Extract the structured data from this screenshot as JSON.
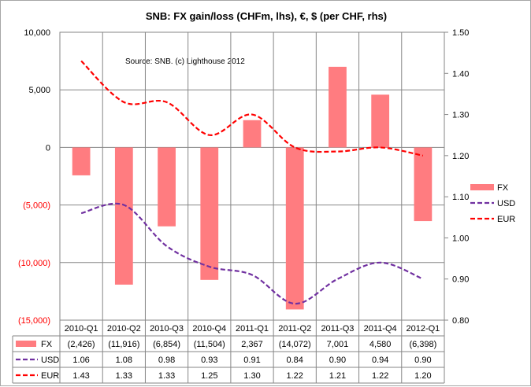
{
  "chart_data": {
    "type": "bar",
    "title": "SNB: FX gain/loss (CHFm, lhs), €, $ (per CHF, rhs)",
    "annotation": "Source: SNB. (c) Lighthouse 2012",
    "categories": [
      "2010-Q1",
      "2010-Q2",
      "2010-Q3",
      "2010-Q4",
      "2011-Q1",
      "2011-Q2",
      "2011-Q3",
      "2011-Q4",
      "2012-Q1"
    ],
    "y_left": {
      "min": -15000,
      "max": 10000,
      "step": 5000,
      "tick_labels": [
        "10,000",
        "5,000",
        "0",
        "(5,000)",
        "(10,000)",
        "(15,000)"
      ],
      "negative_color": "#ff0000",
      "positive_color": "#000000"
    },
    "y_right": {
      "min": 0.8,
      "max": 1.5,
      "step": 0.1,
      "tick_labels": [
        "1.50",
        "1.40",
        "1.30",
        "1.20",
        "1.10",
        "1.00",
        "0.90",
        "0.80"
      ]
    },
    "series": [
      {
        "name": "FX",
        "kind": "bar",
        "axis": "left",
        "color": "#ff7c80",
        "values": [
          -2426,
          -11916,
          -6854,
          -11504,
          2367,
          -14072,
          7001,
          4580,
          -6398
        ],
        "table_labels": [
          "(2,426)",
          "(11,916)",
          "(6,854)",
          "(11,504)",
          "2,367",
          "(14,072)",
          "7,001",
          "4,580",
          "(6,398)"
        ]
      },
      {
        "name": "USD",
        "kind": "line",
        "axis": "right",
        "color": "#7030a0",
        "dashed": true,
        "values": [
          1.06,
          1.08,
          0.98,
          0.93,
          0.91,
          0.84,
          0.9,
          0.94,
          0.9
        ],
        "table_labels": [
          "1.06",
          "1.08",
          "0.98",
          "0.93",
          "0.91",
          "0.84",
          "0.90",
          "0.94",
          "0.90"
        ]
      },
      {
        "name": "EUR",
        "kind": "line",
        "axis": "right",
        "color": "#ff0000",
        "dashed": true,
        "values": [
          1.43,
          1.33,
          1.33,
          1.25,
          1.3,
          1.22,
          1.21,
          1.22,
          1.2
        ],
        "table_labels": [
          "1.43",
          "1.33",
          "1.33",
          "1.25",
          "1.30",
          "1.22",
          "1.21",
          "1.22",
          "1.20"
        ]
      }
    ],
    "grid": true,
    "legend": "right",
    "data_table": true
  }
}
